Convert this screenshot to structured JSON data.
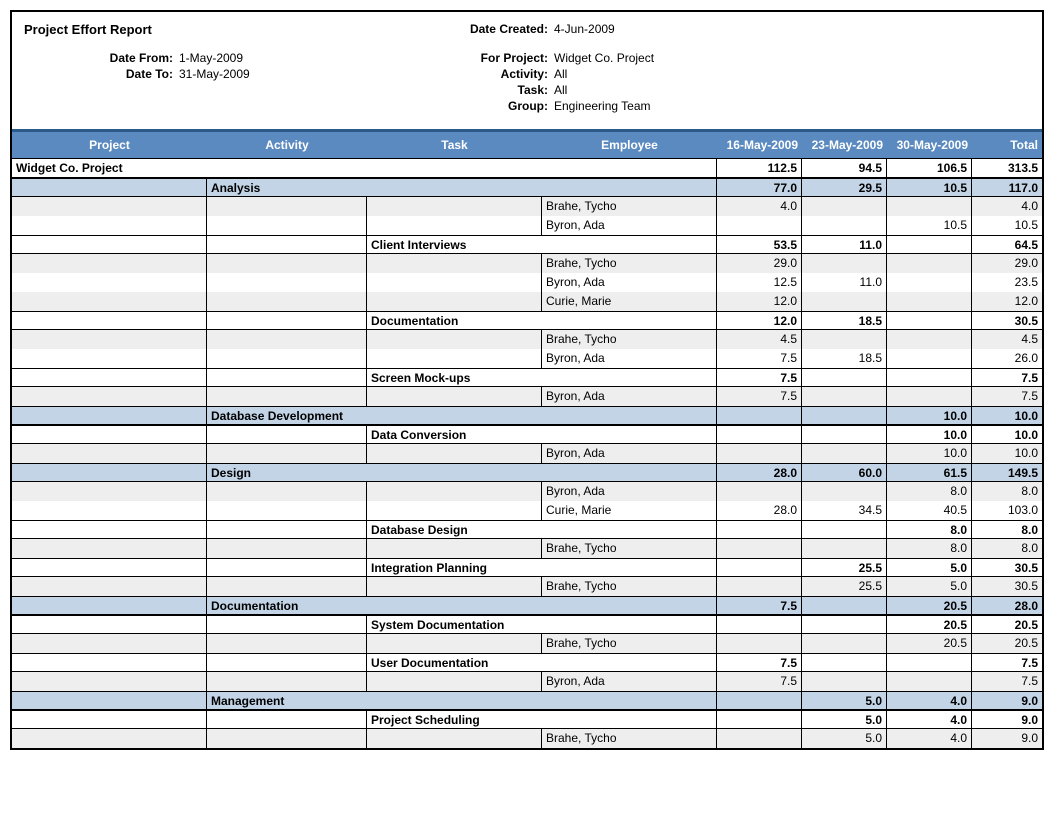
{
  "report": {
    "title": "Project Effort Report",
    "date_created_label": "Date Created:",
    "date_created": "4-Jun-2009",
    "date_from_label": "Date From:",
    "date_from": "1-May-2009",
    "date_to_label": "Date To:",
    "date_to": "31-May-2009",
    "for_project_label": "For Project:",
    "for_project": "Widget Co. Project",
    "activity_label": "Activity:",
    "activity": "All",
    "task_label": "Task:",
    "task": "All",
    "group_label": "Group:",
    "group": "Engineering Team"
  },
  "columns": {
    "project": "Project",
    "activity": "Activity",
    "task": "Task",
    "employee": "Employee",
    "d1": "16-May-2009",
    "d2": "23-May-2009",
    "d3": "30-May-2009",
    "total": "Total"
  },
  "colors": {
    "header_bg": "#5a8ac0",
    "header_border_top": "#2a5a8a",
    "activity_bg": "#c3d4e7",
    "zebra": "#eeeeee"
  },
  "rows": [
    {
      "type": "project",
      "label": "Widget Co. Project",
      "d1": "112.5",
      "d2": "94.5",
      "d3": "106.5",
      "total": "313.5"
    },
    {
      "type": "activity",
      "label": "Analysis",
      "d1": "77.0",
      "d2": "29.5",
      "d3": "10.5",
      "total": "117.0"
    },
    {
      "type": "emp",
      "zebra": "even",
      "employee": "Brahe, Tycho",
      "d1": "4.0",
      "d2": "",
      "d3": "",
      "total": "4.0"
    },
    {
      "type": "emp",
      "zebra": "odd",
      "employee": "Byron, Ada",
      "d1": "",
      "d2": "",
      "d3": "10.5",
      "total": "10.5"
    },
    {
      "type": "task",
      "label": "Client Interviews",
      "d1": "53.5",
      "d2": "11.0",
      "d3": "",
      "total": "64.5"
    },
    {
      "type": "emp",
      "zebra": "even",
      "employee": "Brahe, Tycho",
      "d1": "29.0",
      "d2": "",
      "d3": "",
      "total": "29.0"
    },
    {
      "type": "emp",
      "zebra": "odd",
      "employee": "Byron, Ada",
      "d1": "12.5",
      "d2": "11.0",
      "d3": "",
      "total": "23.5"
    },
    {
      "type": "emp",
      "zebra": "even",
      "employee": "Curie, Marie",
      "d1": "12.0",
      "d2": "",
      "d3": "",
      "total": "12.0"
    },
    {
      "type": "task",
      "label": "Documentation",
      "d1": "12.0",
      "d2": "18.5",
      "d3": "",
      "total": "30.5"
    },
    {
      "type": "emp",
      "zebra": "even",
      "employee": "Brahe, Tycho",
      "d1": "4.5",
      "d2": "",
      "d3": "",
      "total": "4.5"
    },
    {
      "type": "emp",
      "zebra": "odd",
      "employee": "Byron, Ada",
      "d1": "7.5",
      "d2": "18.5",
      "d3": "",
      "total": "26.0"
    },
    {
      "type": "task",
      "label": "Screen Mock-ups",
      "d1": "7.5",
      "d2": "",
      "d3": "",
      "total": "7.5"
    },
    {
      "type": "emp",
      "zebra": "even",
      "employee": "Byron, Ada",
      "d1": "7.5",
      "d2": "",
      "d3": "",
      "total": "7.5"
    },
    {
      "type": "activity",
      "label": "Database Development",
      "d1": "",
      "d2": "",
      "d3": "10.0",
      "total": "10.0"
    },
    {
      "type": "task",
      "label": "Data Conversion",
      "d1": "",
      "d2": "",
      "d3": "10.0",
      "total": "10.0"
    },
    {
      "type": "emp",
      "zebra": "even",
      "employee": "Byron, Ada",
      "d1": "",
      "d2": "",
      "d3": "10.0",
      "total": "10.0"
    },
    {
      "type": "activity",
      "label": "Design",
      "d1": "28.0",
      "d2": "60.0",
      "d3": "61.5",
      "total": "149.5"
    },
    {
      "type": "emp",
      "zebra": "even",
      "employee": "Byron, Ada",
      "d1": "",
      "d2": "",
      "d3": "8.0",
      "total": "8.0"
    },
    {
      "type": "emp",
      "zebra": "odd",
      "employee": "Curie, Marie",
      "d1": "28.0",
      "d2": "34.5",
      "d3": "40.5",
      "total": "103.0"
    },
    {
      "type": "task",
      "label": "Database Design",
      "d1": "",
      "d2": "",
      "d3": "8.0",
      "total": "8.0"
    },
    {
      "type": "emp",
      "zebra": "even",
      "employee": "Brahe, Tycho",
      "d1": "",
      "d2": "",
      "d3": "8.0",
      "total": "8.0"
    },
    {
      "type": "task",
      "label": "Integration Planning",
      "d1": "",
      "d2": "25.5",
      "d3": "5.0",
      "total": "30.5"
    },
    {
      "type": "emp",
      "zebra": "even",
      "employee": "Brahe, Tycho",
      "d1": "",
      "d2": "25.5",
      "d3": "5.0",
      "total": "30.5"
    },
    {
      "type": "activity",
      "label": "Documentation",
      "d1": "7.5",
      "d2": "",
      "d3": "20.5",
      "total": "28.0"
    },
    {
      "type": "task",
      "label": "System Documentation",
      "d1": "",
      "d2": "",
      "d3": "20.5",
      "total": "20.5"
    },
    {
      "type": "emp",
      "zebra": "even",
      "employee": "Brahe, Tycho",
      "d1": "",
      "d2": "",
      "d3": "20.5",
      "total": "20.5"
    },
    {
      "type": "task",
      "label": "User Documentation",
      "d1": "7.5",
      "d2": "",
      "d3": "",
      "total": "7.5"
    },
    {
      "type": "emp",
      "zebra": "even",
      "employee": "Byron, Ada",
      "d1": "7.5",
      "d2": "",
      "d3": "",
      "total": "7.5"
    },
    {
      "type": "activity",
      "label": "Management",
      "d1": "",
      "d2": "5.0",
      "d3": "4.0",
      "total": "9.0"
    },
    {
      "type": "task",
      "label": "Project Scheduling",
      "d1": "",
      "d2": "5.0",
      "d3": "4.0",
      "total": "9.0"
    },
    {
      "type": "emp",
      "zebra": "even",
      "employee": "Brahe, Tycho",
      "d1": "",
      "d2": "5.0",
      "d3": "4.0",
      "total": "9.0"
    }
  ]
}
